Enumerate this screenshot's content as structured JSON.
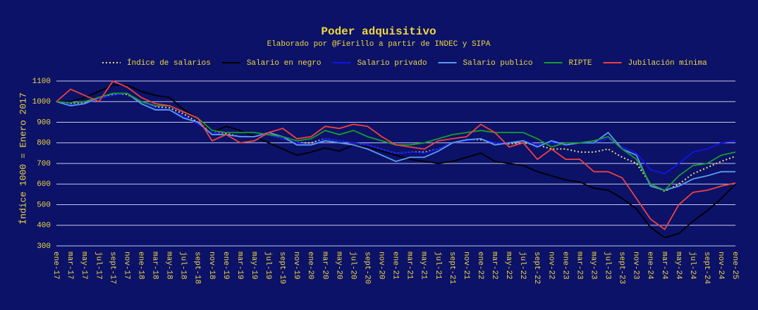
{
  "chart_data": {
    "type": "line",
    "title": "Poder adquisitivo",
    "subtitle": "Elaborado por @Fierillo a partir de INDEC y SIPA",
    "ylabel": "Índice 1000 = Enero 2017",
    "categories": [
      "ene-17",
      "mar-17",
      "may-17",
      "jul-17",
      "sept-17",
      "nov-17",
      "ene-18",
      "mar-18",
      "may-18",
      "jul-18",
      "sept-18",
      "nov-18",
      "ene-19",
      "mar-19",
      "may-19",
      "jul-19",
      "sept-19",
      "nov-19",
      "ene-20",
      "mar-20",
      "may-20",
      "jul-20",
      "sept-20",
      "nov-20",
      "ene-21",
      "mar-21",
      "may-21",
      "jul-21",
      "sept-21",
      "nov-21",
      "ene-22",
      "mar-22",
      "may-22",
      "jul-22",
      "sept-22",
      "nov-22",
      "ene-23",
      "mar-23",
      "may-23",
      "jul-23",
      "sept-23",
      "nov-23",
      "ene-24",
      "mar-24",
      "may-24",
      "jul-24",
      "sept-24",
      "nov-24",
      "ene-25"
    ],
    "ylim": [
      300,
      1100
    ],
    "yticks": [
      300,
      400,
      500,
      600,
      700,
      800,
      900,
      1000,
      1100
    ],
    "grid": true,
    "series": [
      {
        "name": "Índice de salarios",
        "color": "#e8d87a",
        "linestyle": "dotted",
        "values": [
          1000,
          990,
          995,
          1020,
          1035,
          1035,
          1000,
          975,
          970,
          940,
          900,
          850,
          845,
          830,
          830,
          840,
          820,
          800,
          800,
          820,
          810,
          800,
          790,
          770,
          750,
          755,
          755,
          770,
          800,
          815,
          815,
          800,
          795,
          800,
          790,
          770,
          770,
          755,
          755,
          770,
          730,
          700,
          600,
          565,
          600,
          650,
          680,
          710,
          735
        ]
      },
      {
        "name": "Salario en negro",
        "color": "#000000",
        "linestyle": "solid",
        "values": [
          1000,
          1000,
          1020,
          1050,
          1080,
          1080,
          1050,
          1030,
          1020,
          960,
          920,
          850,
          880,
          860,
          830,
          800,
          770,
          740,
          755,
          775,
          760,
          790,
          780,
          760,
          740,
          720,
          710,
          700,
          710,
          730,
          750,
          710,
          700,
          690,
          660,
          640,
          620,
          610,
          580,
          570,
          530,
          480,
          390,
          340,
          360,
          420,
          470,
          530,
          600
        ]
      },
      {
        "name": "Salario privado",
        "color": "#1414e6",
        "linestyle": "solid",
        "values": [
          1000,
          985,
          990,
          1015,
          1030,
          1040,
          1000,
          970,
          960,
          930,
          890,
          850,
          840,
          830,
          830,
          840,
          820,
          800,
          790,
          820,
          810,
          800,
          790,
          770,
          750,
          755,
          750,
          770,
          800,
          810,
          820,
          800,
          800,
          810,
          790,
          800,
          790,
          800,
          800,
          820,
          780,
          750,
          670,
          650,
          700,
          755,
          770,
          800,
          810
        ]
      },
      {
        "name": "Salario publico",
        "color": "#5b9bf0",
        "linestyle": "solid",
        "values": [
          1000,
          980,
          990,
          1020,
          1040,
          1040,
          990,
          960,
          960,
          920,
          900,
          840,
          840,
          830,
          830,
          850,
          830,
          790,
          790,
          810,
          800,
          790,
          770,
          740,
          710,
          730,
          730,
          760,
          800,
          815,
          820,
          790,
          800,
          810,
          780,
          810,
          790,
          800,
          800,
          850,
          770,
          740,
          590,
          570,
          590,
          625,
          640,
          660,
          660
        ]
      },
      {
        "name": "RIPTE",
        "color": "#1a9a30",
        "linestyle": "solid",
        "values": [
          1000,
          995,
          1000,
          1020,
          1040,
          1040,
          1000,
          980,
          980,
          950,
          920,
          860,
          850,
          850,
          850,
          840,
          830,
          810,
          820,
          860,
          840,
          860,
          830,
          810,
          790,
          790,
          800,
          820,
          840,
          850,
          860,
          850,
          850,
          850,
          820,
          780,
          800,
          800,
          810,
          830,
          770,
          720,
          600,
          570,
          640,
          690,
          700,
          740,
          755
        ]
      },
      {
        "name": "Jubilación mínima",
        "color": "#f04040",
        "linestyle": "solid",
        "values": [
          1000,
          1060,
          1030,
          1000,
          1100,
          1070,
          1020,
          990,
          980,
          950,
          920,
          810,
          840,
          800,
          810,
          850,
          870,
          820,
          830,
          880,
          870,
          890,
          880,
          830,
          790,
          780,
          770,
          810,
          820,
          830,
          890,
          850,
          780,
          800,
          720,
          770,
          720,
          720,
          660,
          660,
          630,
          530,
          430,
          380,
          500,
          560,
          570,
          590,
          605
        ]
      }
    ]
  }
}
